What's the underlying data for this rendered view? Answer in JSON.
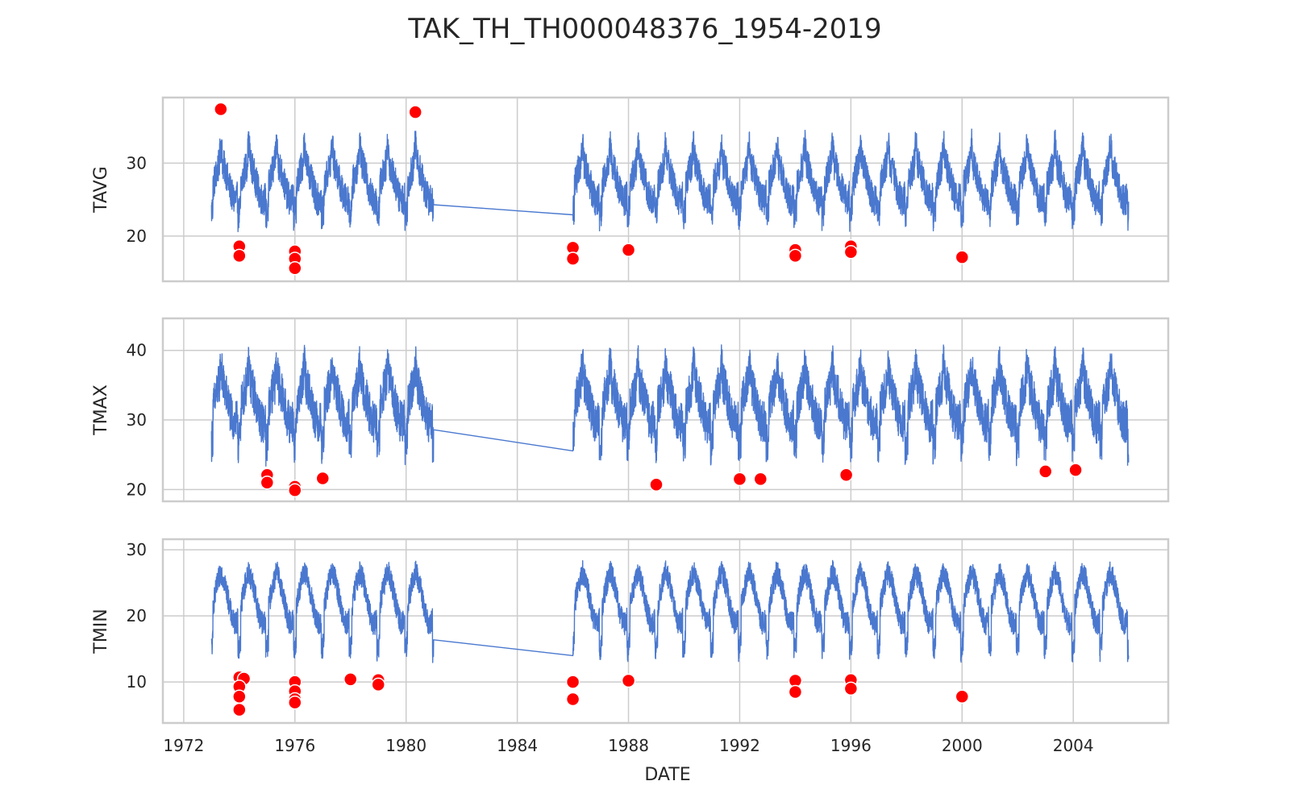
{
  "chart_data": {
    "type": "line",
    "title": "TAK_TH_TH000048376_1954-2019",
    "xlabel": "DATE",
    "x_ticks": [
      "1972",
      "1976",
      "1980",
      "1984",
      "1988",
      "1992",
      "1996",
      "2000",
      "2004"
    ],
    "x_range": [
      "1971-04-01",
      "2007-06-01"
    ],
    "grid": true,
    "line_color": "#4a78cf",
    "marker_color": "#ff0000",
    "data_segments": [
      [
        "1973-01",
        "1980-12"
      ],
      [
        "1986-01",
        "2005-12"
      ]
    ],
    "panels": [
      {
        "ylabel": "TAVG",
        "y_ticks": [
          "20",
          "30"
        ],
        "ylim": [
          13.8,
          39.0
        ],
        "series": {
          "base": 27.5,
          "amplitude": 4.2,
          "noise": 2.2,
          "spike": 37.0,
          "seasonal_dip": 23.0
        },
        "outliers": [
          {
            "date": "1973-05",
            "value": 37.4
          },
          {
            "date": "1974-01",
            "value": 18.6
          },
          {
            "date": "1974-01",
            "value": 17.3
          },
          {
            "date": "1976-01",
            "value": 17.9
          },
          {
            "date": "1976-01",
            "value": 16.9
          },
          {
            "date": "1976-01",
            "value": 15.6
          },
          {
            "date": "1980-05",
            "value": 37.0
          },
          {
            "date": "1986-01",
            "value": 18.4
          },
          {
            "date": "1986-01",
            "value": 16.9
          },
          {
            "date": "1988-01",
            "value": 18.1
          },
          {
            "date": "1994-01",
            "value": 18.1
          },
          {
            "date": "1994-01",
            "value": 17.3
          },
          {
            "date": "1996-01",
            "value": 18.6
          },
          {
            "date": "1996-01",
            "value": 17.8
          },
          {
            "date": "2000-01",
            "value": 17.1
          }
        ]
      },
      {
        "ylabel": "TMAX",
        "y_ticks": [
          "20",
          "30",
          "40"
        ],
        "ylim": [
          18.3,
          44.6
        ],
        "series": {
          "base": 32.5,
          "amplitude": 4.8,
          "noise": 3.0,
          "spike": 42.5,
          "seasonal_dip": 26.0
        },
        "outliers": [
          {
            "date": "1975-01",
            "value": 22.1
          },
          {
            "date": "1975-01",
            "value": 21.0
          },
          {
            "date": "1976-01",
            "value": 20.4
          },
          {
            "date": "1976-01",
            "value": 19.9
          },
          {
            "date": "1977-01",
            "value": 21.6
          },
          {
            "date": "1989-01",
            "value": 20.7
          },
          {
            "date": "1992-01",
            "value": 21.5
          },
          {
            "date": "1992-10",
            "value": 21.5
          },
          {
            "date": "1995-11",
            "value": 22.1
          },
          {
            "date": "2003-01",
            "value": 22.6
          },
          {
            "date": "2004-02",
            "value": 22.8
          }
        ]
      },
      {
        "ylabel": "TMIN",
        "y_ticks": [
          "10",
          "20",
          "30"
        ],
        "ylim": [
          3.8,
          31.6
        ],
        "series": {
          "base": 22.5,
          "amplitude": 6.0,
          "noise": 1.8,
          "spike": 29.5,
          "seasonal_dip": 14.0
        },
        "outliers": [
          {
            "date": "1974-01",
            "value": 10.7
          },
          {
            "date": "1974-03",
            "value": 10.5
          },
          {
            "date": "1974-01",
            "value": 9.3
          },
          {
            "date": "1974-01",
            "value": 7.8
          },
          {
            "date": "1974-01",
            "value": 5.8
          },
          {
            "date": "1976-01",
            "value": 10.0
          },
          {
            "date": "1976-01",
            "value": 8.6
          },
          {
            "date": "1976-01",
            "value": 7.4
          },
          {
            "date": "1976-01",
            "value": 6.9
          },
          {
            "date": "1978-01",
            "value": 10.4
          },
          {
            "date": "1979-01",
            "value": 10.3
          },
          {
            "date": "1979-01",
            "value": 9.6
          },
          {
            "date": "1986-01",
            "value": 10.0
          },
          {
            "date": "1986-01",
            "value": 7.4
          },
          {
            "date": "1988-01",
            "value": 10.2
          },
          {
            "date": "1994-01",
            "value": 10.2
          },
          {
            "date": "1994-01",
            "value": 8.5
          },
          {
            "date": "1996-01",
            "value": 10.3
          },
          {
            "date": "1996-01",
            "value": 9.0
          },
          {
            "date": "2000-01",
            "value": 7.8
          }
        ]
      }
    ]
  }
}
